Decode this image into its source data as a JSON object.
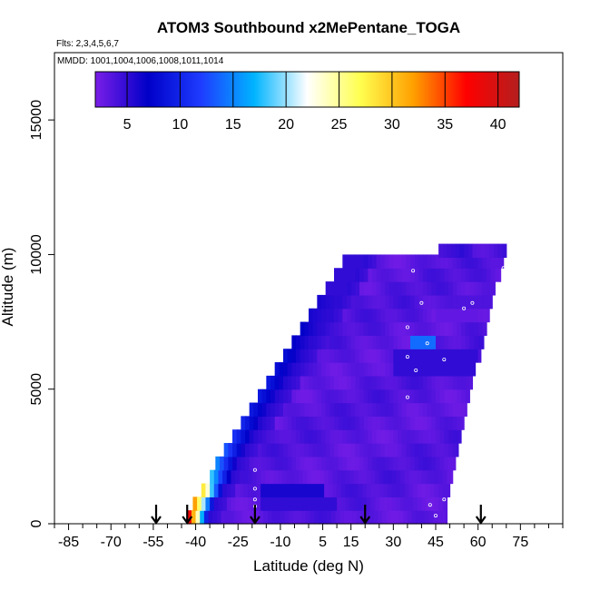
{
  "chart_data": {
    "type": "heatmap",
    "title": "ATOM3 Southbound x2MePentane_TOGA",
    "subtitle_flights": "Flts: 2,3,4,5,6,7",
    "subtitle_dates": "MMDD: 1001,1004,1006,1008,1011,1014",
    "xlabel": "Latitude (deg N)",
    "ylabel": "Altitude (m)",
    "xlim": [
      -90,
      90
    ],
    "ylim": [
      0,
      17500
    ],
    "x_ticks": [
      -85,
      -70,
      -55,
      -40,
      -25,
      -10,
      5,
      15,
      30,
      45,
      60,
      75
    ],
    "y_ticks": [
      0,
      5000,
      10000,
      15000
    ],
    "colorbar": {
      "range": [
        2,
        42
      ],
      "ticks": [
        5,
        10,
        15,
        20,
        25,
        30,
        35,
        40
      ],
      "colors": [
        "#7a1ee8",
        "#0000c8",
        "#1e3cff",
        "#00b4ff",
        "#ffffff",
        "#ffff50",
        "#ffa000",
        "#ff0000",
        "#b41e1e"
      ]
    },
    "arrow_latitudes": [
      -54,
      -43,
      -19,
      20,
      61
    ],
    "curtain_rows": [
      {
        "alt": 250,
        "lat_min": -43,
        "lat_max": 49,
        "edge": 38
      },
      {
        "alt": 750,
        "lat_min": -41,
        "lat_max": 49,
        "edge": 32
      },
      {
        "alt": 1250,
        "lat_min": -38,
        "lat_max": 50,
        "edge": 28
      },
      {
        "alt": 1750,
        "lat_min": -35,
        "lat_max": 51,
        "edge": 18
      },
      {
        "alt": 2250,
        "lat_min": -33,
        "lat_max": 52,
        "edge": 15
      },
      {
        "alt": 2750,
        "lat_min": -30,
        "lat_max": 53,
        "edge": 13
      },
      {
        "alt": 3250,
        "lat_min": -27,
        "lat_max": 54,
        "edge": 11
      },
      {
        "alt": 3750,
        "lat_min": -24,
        "lat_max": 55,
        "edge": 10
      },
      {
        "alt": 4250,
        "lat_min": -21,
        "lat_max": 56,
        "edge": 9
      },
      {
        "alt": 4750,
        "lat_min": -18,
        "lat_max": 57,
        "edge": 9
      },
      {
        "alt": 5250,
        "lat_min": -15,
        "lat_max": 58,
        "edge": 9
      },
      {
        "alt": 5750,
        "lat_min": -12,
        "lat_max": 59,
        "edge": 8
      },
      {
        "alt": 6250,
        "lat_min": -9,
        "lat_max": 61,
        "edge": 8
      },
      {
        "alt": 6750,
        "lat_min": -6,
        "lat_max": 62,
        "edge": 7
      },
      {
        "alt": 7250,
        "lat_min": -3,
        "lat_max": 63,
        "edge": 7
      },
      {
        "alt": 7750,
        "lat_min": 0,
        "lat_max": 64,
        "edge": 6
      },
      {
        "alt": 8250,
        "lat_min": 3,
        "lat_max": 65,
        "edge": 6
      },
      {
        "alt": 8750,
        "lat_min": 6,
        "lat_max": 66,
        "edge": 5
      },
      {
        "alt": 9250,
        "lat_min": 9,
        "lat_max": 68,
        "edge": 5
      },
      {
        "alt": 9750,
        "lat_min": 12,
        "lat_max": 69,
        "edge": 5
      },
      {
        "alt": 10150,
        "lat_min": 46,
        "lat_max": 70,
        "edge": 4
      }
    ],
    "bulk_value": 3.5,
    "anomalies": [
      {
        "lat_min": -18,
        "lat_max": 5,
        "alt_min": 1000,
        "alt_max": 1500,
        "value": 6
      },
      {
        "lat_min": -18,
        "lat_max": 10,
        "alt_min": 500,
        "alt_max": 1000,
        "value": 5
      },
      {
        "lat_min": 35,
        "lat_max": 45,
        "alt_min": 6500,
        "alt_max": 7000,
        "value": 14
      },
      {
        "lat_min": 45,
        "lat_max": 60,
        "alt_min": 7500,
        "alt_max": 8000,
        "value": 3
      },
      {
        "lat_min": 50,
        "lat_max": 66,
        "alt_min": 8000,
        "alt_max": 8500,
        "value": 3.8
      },
      {
        "lat_min": 30,
        "lat_max": 60,
        "alt_min": 5500,
        "alt_max": 6500,
        "value": 5
      }
    ],
    "sample_points": [
      {
        "lat": -19,
        "alt": 2000
      },
      {
        "lat": -19,
        "alt": 1300
      },
      {
        "lat": -19,
        "alt": 900
      },
      {
        "lat": -19,
        "alt": 650
      },
      {
        "lat": 35,
        "alt": 7300
      },
      {
        "lat": 35,
        "alt": 6200
      },
      {
        "lat": 38,
        "alt": 5700
      },
      {
        "lat": 35,
        "alt": 4700
      },
      {
        "lat": 40,
        "alt": 8200
      },
      {
        "lat": 37,
        "alt": 9400
      },
      {
        "lat": 42,
        "alt": 6700
      },
      {
        "lat": 48,
        "alt": 6100
      },
      {
        "lat": 58,
        "alt": 8200
      },
      {
        "lat": 55,
        "alt": 8000
      },
      {
        "lat": 68,
        "alt": 8800
      },
      {
        "lat": 69,
        "alt": 9500
      },
      {
        "lat": 70,
        "alt": 9800
      },
      {
        "lat": 70,
        "alt": 7900
      },
      {
        "lat": 66,
        "alt": 5100
      },
      {
        "lat": 64,
        "alt": 3900
      },
      {
        "lat": 60,
        "alt": 3300
      },
      {
        "lat": 43,
        "alt": 700
      },
      {
        "lat": 48,
        "alt": 900
      },
      {
        "lat": 45,
        "alt": 300
      },
      {
        "lat": 70,
        "alt": 7100
      },
      {
        "lat": 70,
        "alt": 10600
      }
    ]
  }
}
